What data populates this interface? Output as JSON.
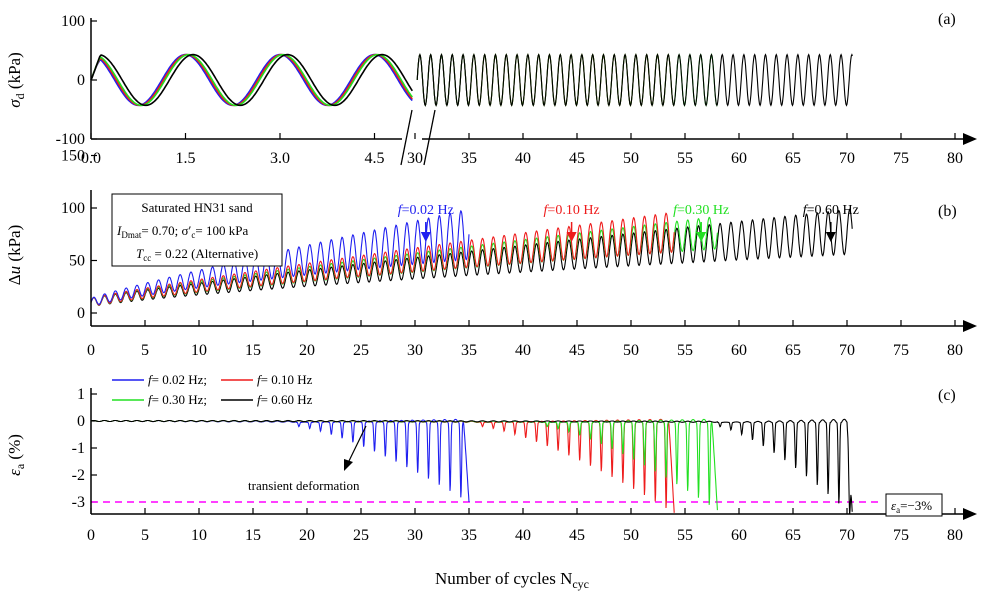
{
  "figure": {
    "common_xlabel": "Number of cycles N",
    "common_xlabel_sub": "cyc"
  },
  "colors": {
    "f002": "#1f1ff0",
    "f010": "#ee1c1c",
    "f030": "#22e022",
    "f060": "#000000",
    "eps_limit": "#ff00ff"
  },
  "chart_data": [
    {
      "panel": "(a)",
      "type": "line",
      "ylabel": "σd (kPa)",
      "ylim": [
        -100,
        100
      ],
      "y_ticks": [
        "100",
        "0",
        "-100"
      ],
      "x_ticks_left": [
        "0.0",
        "1.5",
        "3.0",
        "4.5"
      ],
      "x_ticks_right": [
        "30",
        "35",
        "40",
        "45",
        "50",
        "55",
        "60",
        "65",
        "70",
        "75",
        "80"
      ],
      "axis_break": {
        "left_range": [
          0,
          5.6
        ],
        "right_range": [
          30,
          80
        ]
      },
      "amplitude_kPa": 43,
      "series": [
        {
          "freq": 0.02,
          "color_key": "f002",
          "end_cycle": 35
        },
        {
          "freq": 0.1,
          "color_key": "f010",
          "end_cycle": 54
        },
        {
          "freq": 0.3,
          "color_key": "f030",
          "end_cycle": 58
        },
        {
          "freq": 0.6,
          "color_key": "f060",
          "end_cycle": 70.5
        }
      ]
    },
    {
      "panel": "(b)",
      "type": "line",
      "ylabel": "Δu (kPa)",
      "ylim": [
        -10,
        155
      ],
      "y_ticks": [
        "150",
        "100",
        "50",
        "0"
      ],
      "x_ticks": [
        "0",
        "5",
        "10",
        "15",
        "20",
        "25",
        "30",
        "35",
        "40",
        "45",
        "50",
        "55",
        "60",
        "65",
        "70",
        "75",
        "80"
      ],
      "info_box": {
        "line1": "Saturated HN31 sand",
        "line2_pre": "I",
        "line2_sub": "Dmat",
        "line2_mid": "= 0.70; σ′",
        "line2_sub2": "c",
        "line2_post": "= 100 kPa",
        "line3_pre": "T",
        "line3_sub": "cc",
        "line3_post": " = 0.22 (Alternative)"
      },
      "annotations": [
        {
          "italic": "f",
          "text": "=0.02 Hz",
          "color_key": "f002",
          "x": 31
        },
        {
          "italic": "f",
          "text": "=0.10 Hz",
          "color_key": "f010",
          "x": 44.5
        },
        {
          "italic": "f",
          "text": "=0.30 Hz",
          "color_key": "f030",
          "x": 56.5
        },
        {
          "italic": "f",
          "text": "=0.60 Hz",
          "color_key": "f060",
          "x": 68.5
        }
      ],
      "series": [
        {
          "freq": 0.02,
          "color_key": "f002",
          "end_cycle": 35,
          "max_peak": 95,
          "min_at_end": 55
        },
        {
          "freq": 0.1,
          "color_key": "f010",
          "end_cycle": 54,
          "max_peak": 92,
          "min_at_end": 62
        },
        {
          "freq": 0.3,
          "color_key": "f030",
          "end_cycle": 58,
          "max_peak": 88,
          "min_at_end": 65
        },
        {
          "freq": 0.6,
          "color_key": "f060",
          "end_cycle": 70.5,
          "max_peak": 95,
          "min_at_end": 60
        }
      ]
    },
    {
      "panel": "(c)",
      "type": "line",
      "ylabel": "εa (%)",
      "ylim": [
        -3.5,
        1
      ],
      "y_ticks": [
        "1",
        "0",
        "-1",
        "-2",
        "-3"
      ],
      "x_ticks": [
        "0",
        "5",
        "10",
        "15",
        "20",
        "25",
        "30",
        "35",
        "40",
        "45",
        "50",
        "55",
        "60",
        "65",
        "70",
        "75",
        "80"
      ],
      "legend": [
        {
          "italic": "f",
          "text": "= 0.02 Hz;",
          "color_key": "f002"
        },
        {
          "italic": "f",
          "text": "= 0.10 Hz",
          "color_key": "f010"
        },
        {
          "italic": "f",
          "text": "= 0.30 Hz;",
          "color_key": "f030"
        },
        {
          "italic": "f",
          "text": "= 0.60 Hz",
          "color_key": "f060"
        }
      ],
      "transient_label": "transient deformation",
      "limit_label_pre": "ε",
      "limit_label_sub": "a",
      "limit_label_post": "=−3%",
      "limit_value": -3,
      "series": [
        {
          "freq": 0.02,
          "color_key": "f002",
          "onset_cycle": 19,
          "end_cycle": 35,
          "min_at_end": -3.0
        },
        {
          "freq": 0.1,
          "color_key": "f010",
          "onset_cycle": 36,
          "end_cycle": 54,
          "min_at_end": -3.4
        },
        {
          "freq": 0.3,
          "color_key": "f030",
          "onset_cycle": 42,
          "end_cycle": 58,
          "min_at_end": -3.3
        },
        {
          "freq": 0.6,
          "color_key": "f060",
          "onset_cycle": 58,
          "end_cycle": 70.5,
          "min_at_end": -3.5
        }
      ]
    }
  ]
}
